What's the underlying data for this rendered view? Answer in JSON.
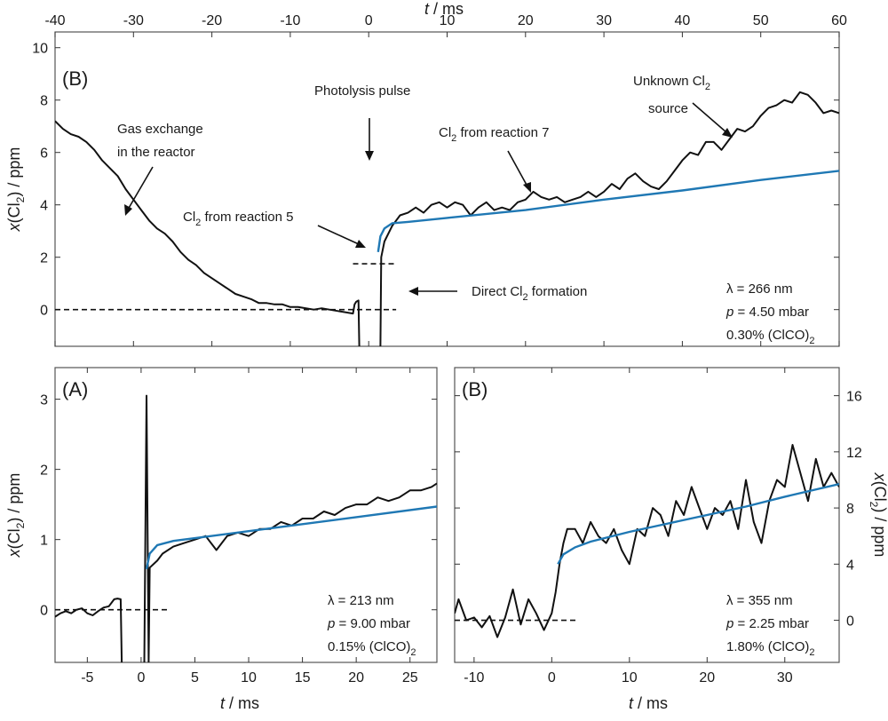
{
  "chart_data": [
    {
      "id": "top",
      "type": "line",
      "panel_label": "(B)",
      "xlabel": "t / ms",
      "ylabel": "x(Cl2) / ppm",
      "xlim": [
        -40,
        60
      ],
      "ylim": [
        -1.4,
        10.6
      ],
      "xticks": [
        -40,
        -30,
        -20,
        -10,
        0,
        10,
        20,
        30,
        40,
        50,
        60
      ],
      "yticks": [
        0,
        2,
        4,
        6,
        8,
        10
      ],
      "grid": false,
      "info": [
        "λ = 266 nm",
        "p = 4.50 mbar",
        "0.30% (ClCO)2"
      ],
      "series": [
        {
          "kind": "trace",
          "color": "#111111",
          "points": [
            [
              -40,
              7.2
            ],
            [
              -39,
              6.9
            ],
            [
              -38,
              6.7
            ],
            [
              -37,
              6.6
            ],
            [
              -36,
              6.4
            ],
            [
              -35,
              6.1
            ],
            [
              -34,
              5.7
            ],
            [
              -33,
              5.4
            ],
            [
              -32,
              5.1
            ],
            [
              -31,
              4.6
            ],
            [
              -30,
              4.2
            ],
            [
              -29,
              3.8
            ],
            [
              -28,
              3.4
            ],
            [
              -27,
              3.1
            ],
            [
              -26,
              2.9
            ],
            [
              -25,
              2.6
            ],
            [
              -24,
              2.2
            ],
            [
              -23,
              1.9
            ],
            [
              -22,
              1.7
            ],
            [
              -21,
              1.4
            ],
            [
              -20,
              1.2
            ],
            [
              -19,
              1.0
            ],
            [
              -18,
              0.8
            ],
            [
              -17,
              0.6
            ],
            [
              -16,
              0.5
            ],
            [
              -15,
              0.4
            ],
            [
              -14,
              0.25
            ],
            [
              -13,
              0.25
            ],
            [
              -12,
              0.2
            ],
            [
              -11,
              0.2
            ],
            [
              -10,
              0.1
            ],
            [
              -9,
              0.1
            ],
            [
              -8,
              0.05
            ],
            [
              -7,
              0.0
            ],
            [
              -6,
              0.05
            ],
            [
              -5,
              0.0
            ],
            [
              -4,
              -0.05
            ],
            [
              -3,
              -0.1
            ],
            [
              -2,
              -0.15
            ],
            [
              -1.8,
              0.2
            ],
            [
              -1.6,
              0.3
            ],
            [
              -1.3,
              0.35
            ],
            [
              -1.2,
              -1.4
            ]
          ]
        },
        {
          "kind": "trace",
          "color": "#111111",
          "points": [
            [
              1.5,
              -1.4
            ],
            [
              1.6,
              2.0
            ],
            [
              2,
              2.6
            ],
            [
              3,
              3.2
            ],
            [
              4,
              3.6
            ],
            [
              5,
              3.7
            ],
            [
              6,
              3.9
            ],
            [
              7,
              3.7
            ],
            [
              8,
              4.0
            ],
            [
              9,
              4.1
            ],
            [
              10,
              3.9
            ],
            [
              11,
              4.1
            ],
            [
              12,
              4.0
            ],
            [
              13,
              3.6
            ],
            [
              14,
              3.9
            ],
            [
              15,
              4.1
            ],
            [
              16,
              3.8
            ],
            [
              17,
              3.9
            ],
            [
              18,
              3.8
            ],
            [
              19,
              4.1
            ],
            [
              20,
              4.2
            ],
            [
              21,
              4.5
            ],
            [
              22,
              4.3
            ],
            [
              23,
              4.2
            ],
            [
              24,
              4.3
            ],
            [
              25,
              4.1
            ],
            [
              26,
              4.2
            ],
            [
              27,
              4.3
            ],
            [
              28,
              4.5
            ],
            [
              29,
              4.3
            ],
            [
              30,
              4.5
            ],
            [
              31,
              4.8
            ],
            [
              32,
              4.6
            ],
            [
              33,
              5.0
            ],
            [
              34,
              5.2
            ],
            [
              35,
              4.9
            ],
            [
              36,
              4.7
            ],
            [
              37,
              4.6
            ],
            [
              38,
              4.9
            ],
            [
              39,
              5.3
            ],
            [
              40,
              5.7
            ],
            [
              41,
              6.0
            ],
            [
              42,
              5.9
            ],
            [
              43,
              6.4
            ],
            [
              44,
              6.4
            ],
            [
              45,
              6.1
            ],
            [
              46,
              6.5
            ],
            [
              47,
              6.9
            ],
            [
              48,
              6.8
            ],
            [
              49,
              7.0
            ],
            [
              50,
              7.4
            ],
            [
              51,
              7.7
            ],
            [
              52,
              7.8
            ],
            [
              53,
              8.0
            ],
            [
              54,
              7.9
            ],
            [
              55,
              8.3
            ],
            [
              56,
              8.2
            ],
            [
              57,
              7.9
            ],
            [
              58,
              7.5
            ],
            [
              59,
              7.6
            ],
            [
              60,
              7.5
            ]
          ]
        },
        {
          "kind": "fit",
          "color": "#1f78b4",
          "points": [
            [
              1.2,
              2.2
            ],
            [
              1.5,
              2.8
            ],
            [
              2,
              3.1
            ],
            [
              3,
              3.3
            ],
            [
              5,
              3.35
            ],
            [
              10,
              3.5
            ],
            [
              20,
              3.8
            ],
            [
              30,
              4.2
            ],
            [
              40,
              4.55
            ],
            [
              50,
              4.95
            ],
            [
              60,
              5.3
            ]
          ]
        },
        {
          "kind": "baseline",
          "points": [
            [
              -40,
              0
            ],
            [
              3.5,
              0
            ]
          ]
        },
        {
          "kind": "baseline",
          "points": [
            [
              -2,
              1.75
            ],
            [
              3.5,
              1.75
            ]
          ]
        }
      ],
      "annotations": {
        "gas_exchange": [
          "Gas exchange",
          "in the reactor"
        ],
        "photolysis": "Photolysis pulse",
        "r7_main": "Cl",
        "r7_sub": "2",
        "r7_tail": " from reaction 7",
        "r5_main": "Cl",
        "r5_sub": "2",
        "r5_tail": " from reaction 5",
        "direct_head": "Direct Cl",
        "direct_sub": "2",
        "direct_tail": " formation",
        "unknown_head": "Unknown Cl",
        "unknown_sub": "2",
        "unknown_line2": "source"
      }
    },
    {
      "id": "bottom-left",
      "type": "line",
      "panel_label": "(A)",
      "xlabel": "t / ms",
      "ylabel": "x(Cl2) / ppm",
      "xlim": [
        -8,
        27.5
      ],
      "ylim": [
        -0.75,
        3.45
      ],
      "xticks": [
        -5,
        0,
        5,
        10,
        15,
        20,
        25
      ],
      "yticks": [
        0,
        1,
        2,
        3
      ],
      "grid": false,
      "info": [
        "λ = 213 nm",
        "p = 9.00 mbar",
        "0.15% (ClCO)2"
      ],
      "series": [
        {
          "kind": "trace",
          "color": "#111111",
          "points": [
            [
              -8,
              -0.1
            ],
            [
              -7.5,
              -0.05
            ],
            [
              -7,
              -0.02
            ],
            [
              -6.5,
              -0.05
            ],
            [
              -6,
              0.0
            ],
            [
              -5.5,
              0.02
            ],
            [
              -5,
              -0.05
            ],
            [
              -4.5,
              -0.08
            ],
            [
              -4,
              -0.02
            ],
            [
              -3.5,
              0.03
            ],
            [
              -3,
              0.05
            ],
            [
              -2.5,
              0.15
            ],
            [
              -2.2,
              0.16
            ],
            [
              -1.9,
              0.15
            ],
            [
              -1.8,
              -0.75
            ]
          ]
        },
        {
          "kind": "trace",
          "color": "#111111",
          "points": [
            [
              0.3,
              -0.75
            ],
            [
              0.5,
              3.05
            ],
            [
              0.7,
              -0.75
            ],
            [
              0.8,
              0.6
            ],
            [
              1.5,
              0.7
            ],
            [
              2,
              0.8
            ],
            [
              3,
              0.9
            ],
            [
              4,
              0.95
            ],
            [
              5,
              1.0
            ],
            [
              6,
              1.05
            ],
            [
              7,
              0.85
            ],
            [
              8,
              1.05
            ],
            [
              9,
              1.1
            ],
            [
              10,
              1.05
            ],
            [
              11,
              1.15
            ],
            [
              12,
              1.15
            ],
            [
              13,
              1.25
            ],
            [
              14,
              1.2
            ],
            [
              15,
              1.3
            ],
            [
              16,
              1.3
            ],
            [
              17,
              1.4
            ],
            [
              18,
              1.35
            ],
            [
              19,
              1.45
            ],
            [
              20,
              1.5
            ],
            [
              21,
              1.5
            ],
            [
              22,
              1.6
            ],
            [
              23,
              1.55
            ],
            [
              24,
              1.6
            ],
            [
              25,
              1.7
            ],
            [
              26,
              1.7
            ],
            [
              27,
              1.75
            ],
            [
              27.5,
              1.8
            ]
          ]
        },
        {
          "kind": "fit",
          "color": "#1f78b4",
          "points": [
            [
              0.5,
              0.58
            ],
            [
              0.8,
              0.8
            ],
            [
              1.5,
              0.92
            ],
            [
              3,
              0.98
            ],
            [
              5,
              1.02
            ],
            [
              10,
              1.12
            ],
            [
              15,
              1.22
            ],
            [
              20,
              1.32
            ],
            [
              27.5,
              1.47
            ]
          ]
        },
        {
          "kind": "baseline",
          "points": [
            [
              -8,
              0
            ],
            [
              2.5,
              0
            ]
          ]
        }
      ]
    },
    {
      "id": "bottom-right",
      "type": "line",
      "panel_label": "(B)",
      "xlabel": "t / ms",
      "ylabel": "x(Cl2) / ppm",
      "xlim": [
        -12.5,
        37
      ],
      "ylim": [
        -3,
        18
      ],
      "xticks": [
        -10,
        0,
        10,
        20,
        30
      ],
      "yticks": [
        0,
        4,
        8,
        12,
        16
      ],
      "y_axis_side": "right",
      "grid": false,
      "info": [
        "λ = 355 nm",
        "p = 2.25 mbar",
        "1.80% (ClCO)2"
      ],
      "series": [
        {
          "kind": "trace",
          "color": "#111111",
          "points": [
            [
              -12.5,
              0.5
            ],
            [
              -12,
              1.5
            ],
            [
              -11,
              0.0
            ],
            [
              -10,
              0.2
            ],
            [
              -9,
              -0.5
            ],
            [
              -8,
              0.3
            ],
            [
              -7,
              -1.2
            ],
            [
              -6,
              0.2
            ],
            [
              -5,
              2.2
            ],
            [
              -4,
              -0.3
            ],
            [
              -3,
              1.5
            ],
            [
              -2,
              0.5
            ],
            [
              -1,
              -0.7
            ],
            [
              0,
              0.5
            ],
            [
              0.5,
              2.0
            ],
            [
              1,
              4.0
            ],
            [
              1.5,
              5.5
            ],
            [
              2,
              6.5
            ],
            [
              3,
              6.5
            ],
            [
              4,
              5.5
            ],
            [
              5,
              7.0
            ],
            [
              6,
              6.0
            ],
            [
              7,
              5.5
            ],
            [
              8,
              6.5
            ],
            [
              9,
              5.0
            ],
            [
              10,
              4.0
            ],
            [
              11,
              6.5
            ],
            [
              12,
              6.0
            ],
            [
              13,
              8.0
            ],
            [
              14,
              7.5
            ],
            [
              15,
              6.0
            ],
            [
              16,
              8.5
            ],
            [
              17,
              7.5
            ],
            [
              18,
              9.5
            ],
            [
              19,
              8.0
            ],
            [
              20,
              6.5
            ],
            [
              21,
              8.0
            ],
            [
              22,
              7.5
            ],
            [
              23,
              8.5
            ],
            [
              24,
              6.5
            ],
            [
              25,
              10.0
            ],
            [
              26,
              7.0
            ],
            [
              27,
              5.5
            ],
            [
              28,
              8.5
            ],
            [
              29,
              10.0
            ],
            [
              30,
              9.5
            ],
            [
              31,
              12.5
            ],
            [
              32,
              10.5
            ],
            [
              33,
              8.5
            ],
            [
              34,
              11.5
            ],
            [
              35,
              9.5
            ],
            [
              36,
              10.5
            ],
            [
              37,
              9.5
            ]
          ]
        },
        {
          "kind": "fit",
          "color": "#1f78b4",
          "points": [
            [
              0.8,
              4.0
            ],
            [
              1.5,
              4.7
            ],
            [
              3,
              5.2
            ],
            [
              5,
              5.6
            ],
            [
              10,
              6.3
            ],
            [
              15,
              6.9
            ],
            [
              20,
              7.5
            ],
            [
              25,
              8.1
            ],
            [
              30,
              8.8
            ],
            [
              37,
              9.7
            ]
          ]
        },
        {
          "kind": "baseline",
          "points": [
            [
              -12.5,
              0
            ],
            [
              3.5,
              0
            ]
          ]
        }
      ]
    }
  ]
}
